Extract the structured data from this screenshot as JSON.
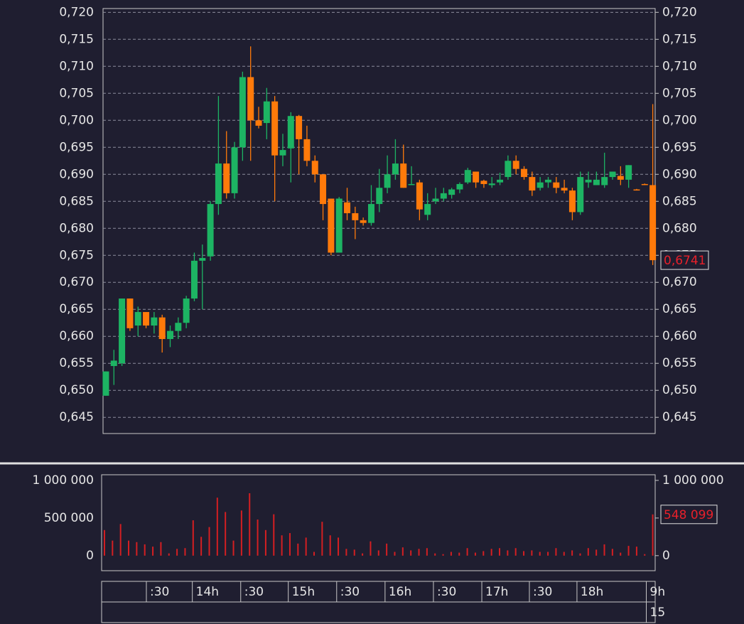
{
  "chart_data": [
    {
      "type": "candlestick",
      "xlim": [
        -0.35,
        68.3
      ],
      "ylim": [
        0.642,
        0.7207
      ],
      "yticks": [
        {
          "value": 0.72,
          "label": "0,720"
        },
        {
          "value": 0.715,
          "label": "0,715"
        },
        {
          "value": 0.71,
          "label": "0,710"
        },
        {
          "value": 0.705,
          "label": "0,705"
        },
        {
          "value": 0.7,
          "label": "0,700"
        },
        {
          "value": 0.695,
          "label": "0,695"
        },
        {
          "value": 0.69,
          "label": "0,690"
        },
        {
          "value": 0.685,
          "label": "0,685"
        },
        {
          "value": 0.68,
          "label": "0,680"
        },
        {
          "value": 0.675,
          "label": "0,675"
        },
        {
          "value": 0.67,
          "label": "0,670"
        },
        {
          "value": 0.665,
          "label": "0,665"
        },
        {
          "value": 0.66,
          "label": "0,660"
        },
        {
          "value": 0.655,
          "label": "0,655"
        },
        {
          "value": 0.65,
          "label": "0,650"
        },
        {
          "value": 0.645,
          "label": "0,645"
        }
      ],
      "grid": true,
      "up_color": "#1db463",
      "down_color": "#ff7a0a",
      "open": [
        0.649,
        0.6545,
        0.655,
        0.667,
        0.662,
        0.6645,
        0.662,
        0.6635,
        0.6595,
        0.661,
        0.6625,
        0.667,
        0.674,
        0.6748,
        0.6845,
        0.692,
        0.6865,
        0.695,
        0.708,
        0.7,
        0.6995,
        0.7035,
        0.6935,
        0.6948,
        0.7008,
        0.6965,
        0.6925,
        0.69,
        0.6855,
        0.6755,
        0.6848,
        0.6828,
        0.6815,
        0.681,
        0.6845,
        0.6875,
        0.69,
        0.692,
        0.6882,
        0.6885,
        0.6825,
        0.685,
        0.6855,
        0.6862,
        0.6872,
        0.6885,
        0.6905,
        0.6888,
        0.688,
        0.6885,
        0.6895,
        0.6925,
        0.691,
        0.6895,
        0.6875,
        0.6885,
        0.6885,
        0.6875,
        0.687,
        0.683,
        0.6885,
        0.688,
        0.688,
        0.6895,
        0.6897,
        0.689,
        0.6872,
        0.6882,
        0.688
      ],
      "high": [
        0.6535,
        0.6575,
        0.667,
        0.667,
        0.6655,
        0.6645,
        0.6645,
        0.664,
        0.662,
        0.6635,
        0.6675,
        0.6755,
        0.677,
        0.685,
        0.7045,
        0.698,
        0.696,
        0.709,
        0.7137,
        0.7025,
        0.706,
        0.7045,
        0.6975,
        0.7015,
        0.701,
        0.699,
        0.6935,
        0.69,
        0.6855,
        0.6858,
        0.6875,
        0.684,
        0.682,
        0.688,
        0.691,
        0.6935,
        0.6965,
        0.6955,
        0.6915,
        0.689,
        0.6865,
        0.6875,
        0.6875,
        0.6875,
        0.6885,
        0.6912,
        0.6905,
        0.689,
        0.6895,
        0.6903,
        0.6935,
        0.6935,
        0.6915,
        0.6905,
        0.6895,
        0.6895,
        0.6895,
        0.689,
        0.6875,
        0.6905,
        0.6905,
        0.6905,
        0.694,
        0.6905,
        0.6915,
        0.6917,
        0.6873,
        0.6883,
        0.703
      ],
      "low": [
        0.649,
        0.651,
        0.6545,
        0.661,
        0.66,
        0.6615,
        0.6605,
        0.657,
        0.658,
        0.6595,
        0.6615,
        0.6665,
        0.665,
        0.674,
        0.6825,
        0.6855,
        0.6855,
        0.6925,
        0.6925,
        0.6985,
        0.6965,
        0.685,
        0.6915,
        0.6885,
        0.69,
        0.6915,
        0.6885,
        0.6815,
        0.675,
        0.6755,
        0.6815,
        0.678,
        0.6805,
        0.6805,
        0.683,
        0.6865,
        0.689,
        0.6875,
        0.688,
        0.6815,
        0.6815,
        0.6845,
        0.685,
        0.6855,
        0.6865,
        0.6882,
        0.6875,
        0.6875,
        0.6875,
        0.688,
        0.689,
        0.69,
        0.689,
        0.686,
        0.687,
        0.6875,
        0.6865,
        0.6865,
        0.6815,
        0.6825,
        0.6875,
        0.688,
        0.6875,
        0.689,
        0.688,
        0.6875,
        0.687,
        0.688,
        0.6732
      ],
      "close": [
        0.6535,
        0.6555,
        0.667,
        0.6615,
        0.6645,
        0.662,
        0.6635,
        0.6595,
        0.661,
        0.6625,
        0.667,
        0.674,
        0.6745,
        0.6845,
        0.692,
        0.6865,
        0.695,
        0.708,
        0.7,
        0.699,
        0.7035,
        0.6935,
        0.6945,
        0.7008,
        0.6965,
        0.6925,
        0.69,
        0.6845,
        0.6755,
        0.6855,
        0.6828,
        0.6815,
        0.681,
        0.6845,
        0.6875,
        0.69,
        0.692,
        0.6875,
        0.6882,
        0.6835,
        0.6845,
        0.6855,
        0.6865,
        0.6872,
        0.6882,
        0.6908,
        0.6885,
        0.6882,
        0.6883,
        0.689,
        0.6925,
        0.691,
        0.6895,
        0.687,
        0.6885,
        0.689,
        0.6875,
        0.687,
        0.683,
        0.6895,
        0.689,
        0.689,
        0.6895,
        0.6905,
        0.689,
        0.6917,
        0.6871,
        0.6881,
        0.6741
      ],
      "close_label": "0,6741"
    },
    {
      "type": "bar",
      "xlim": [
        -0.35,
        68.3
      ],
      "ylim": [
        -200000,
        1075000
      ],
      "yticks": [
        {
          "value": 1000000,
          "label": "1 000 000"
        },
        {
          "value": 500000,
          "label": "500 000"
        },
        0
      ],
      "color": "#d41f22",
      "values": [
        340000,
        200000,
        420000,
        200000,
        180000,
        150000,
        120000,
        180000,
        30000,
        90000,
        100000,
        470000,
        250000,
        380000,
        770000,
        580000,
        200000,
        600000,
        830000,
        480000,
        340000,
        550000,
        270000,
        300000,
        160000,
        240000,
        50000,
        450000,
        270000,
        240000,
        90000,
        80000,
        30000,
        190000,
        70000,
        160000,
        50000,
        110000,
        70000,
        90000,
        100000,
        30000,
        20000,
        50000,
        40000,
        100000,
        40000,
        60000,
        90000,
        100000,
        70000,
        100000,
        60000,
        70000,
        50000,
        50000,
        100000,
        50000,
        70000,
        30000,
        100000,
        80000,
        150000,
        90000,
        40000,
        130000,
        120000,
        20000,
        548099
      ],
      "last_label": "548 099",
      "xticks": [
        {
          "value": 5.2,
          "label": ":30"
        },
        {
          "value": 10.9,
          "label": "14h"
        },
        {
          "value": 16.9,
          "label": ":30"
        },
        {
          "value": 22.8,
          "label": "15h"
        },
        {
          "value": 28.8,
          "label": ":30"
        },
        {
          "value": 34.8,
          "label": "16h"
        },
        {
          "value": 40.8,
          "label": ":30"
        },
        {
          "value": 46.8,
          "label": "17h"
        },
        {
          "value": 52.7,
          "label": ":30"
        },
        {
          "value": 58.6,
          "label": "18h"
        },
        {
          "value": 67.2,
          "label": "9h"
        }
      ],
      "xticks2": [
        {
          "value": 67.2,
          "label": "15"
        }
      ]
    }
  ]
}
